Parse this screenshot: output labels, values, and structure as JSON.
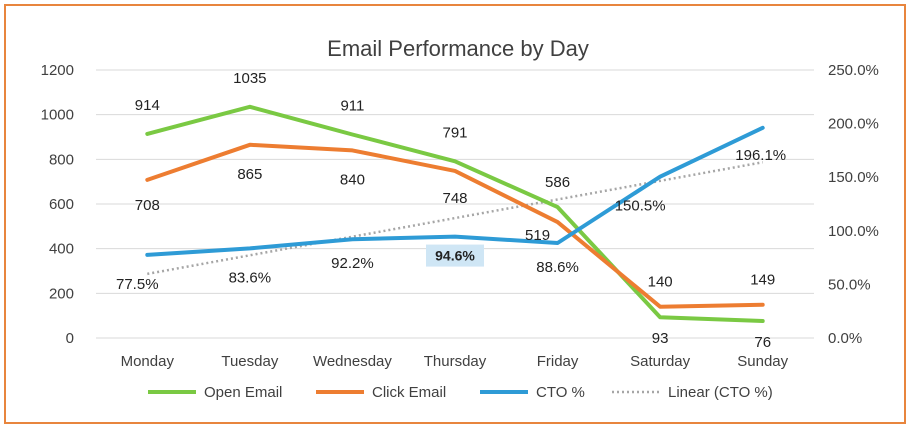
{
  "chart_data": {
    "type": "line",
    "title": "Email Performance by Day",
    "categories": [
      "Monday",
      "Tuesday",
      "Wednesday",
      "Thursday",
      "Friday",
      "Saturday",
      "Sunday"
    ],
    "y_left": {
      "range": [
        0,
        1200
      ],
      "ticks": [
        "0",
        "200",
        "400",
        "600",
        "800",
        "1000",
        "1200"
      ]
    },
    "y_right": {
      "range": [
        0,
        250
      ],
      "ticks": [
        "0.0%",
        "50.0%",
        "100.0%",
        "150.0%",
        "200.0%",
        "250.0%"
      ]
    },
    "grid": true,
    "legend_position": "bottom",
    "series": [
      {
        "name": "Open Email",
        "axis": "left",
        "color": "#7AC943",
        "values": [
          914,
          1035,
          911,
          791,
          586,
          93,
          76
        ],
        "labels": [
          "914",
          "1035",
          "911",
          "791",
          "586",
          "93",
          "76"
        ]
      },
      {
        "name": "Click Email",
        "axis": "left",
        "color": "#ED7D31",
        "values": [
          708,
          865,
          840,
          748,
          519,
          140,
          149
        ],
        "labels": [
          "708",
          "865",
          "840",
          "748",
          "519",
          "140",
          "149"
        ]
      },
      {
        "name": "CTO %",
        "axis": "right",
        "color": "#2E9BD6",
        "values": [
          77.5,
          83.6,
          92.2,
          94.6,
          88.6,
          150.5,
          196.1
        ],
        "labels": [
          "77.5%",
          "83.6%",
          "92.2%",
          "94.6%",
          "88.6%",
          "150.5%",
          "196.1%"
        ],
        "highlight_index": 3
      },
      {
        "name": "Linear (CTO %)",
        "axis": "right",
        "color": "#A6A6A6",
        "style": "dotted",
        "trendline_of": "CTO %"
      }
    ]
  }
}
